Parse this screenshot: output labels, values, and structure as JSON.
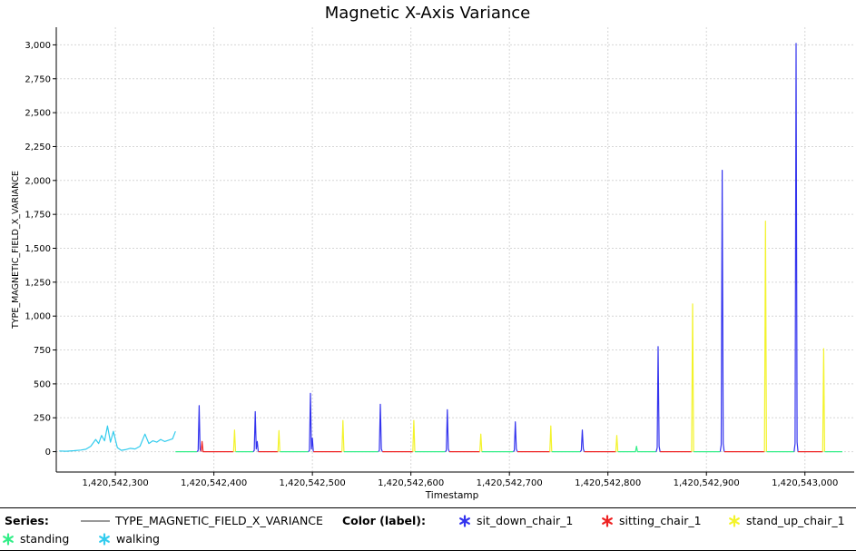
{
  "colors": {
    "sit_down_chair_1": "#3333ee",
    "sitting_chair_1": "#ee2222",
    "stand_up_chair_1": "#f3f32a",
    "standing": "#33ee88",
    "walking": "#33ccee",
    "series_line": "#9a9a9a"
  },
  "legend": {
    "series_heading": "Series:",
    "series_name": "TYPE_MAGNETIC_FIELD_X_VARIANCE",
    "color_heading": "Color (label):",
    "labels": [
      {
        "key": "sit_down_chair_1",
        "text": "sit_down_chair_1",
        "icon": "asterisk-icon"
      },
      {
        "key": "sitting_chair_1",
        "text": "sitting_chair_1",
        "icon": "asterisk-icon"
      },
      {
        "key": "stand_up_chair_1",
        "text": "stand_up_chair_1",
        "icon": "asterisk-icon"
      },
      {
        "key": "standing",
        "text": "standing",
        "icon": "asterisk-icon"
      },
      {
        "key": "walking",
        "text": "walking",
        "icon": "asterisk-icon"
      }
    ]
  },
  "chart_data": {
    "type": "line",
    "title": "Magnetic X-Axis Variance",
    "xlabel": "Timestamp",
    "ylabel": "TYPE_MAGNETIC_FIELD_X_VARIANCE",
    "xlim": [
      1420542240,
      1420543050
    ],
    "ylim": [
      -150,
      3130
    ],
    "grid": true,
    "legend_position": "bottom",
    "x_ticks": [
      {
        "value": 1420542300,
        "label": "1,420,542,300"
      },
      {
        "value": 1420542400,
        "label": "1,420,542,400"
      },
      {
        "value": 1420542500,
        "label": "1,420,542,500"
      },
      {
        "value": 1420542600,
        "label": "1,420,542,600"
      },
      {
        "value": 1420542700,
        "label": "1,420,542,700"
      },
      {
        "value": 1420542800,
        "label": "1,420,542,800"
      },
      {
        "value": 1420542900,
        "label": "1,420,542,900"
      },
      {
        "value": 1420543000,
        "label": "1,420,543,000"
      }
    ],
    "y_ticks": [
      {
        "value": 0,
        "label": "0"
      },
      {
        "value": 250,
        "label": "250"
      },
      {
        "value": 500,
        "label": "500"
      },
      {
        "value": 750,
        "label": "750"
      },
      {
        "value": 1000,
        "label": "1,000"
      },
      {
        "value": 1250,
        "label": "1,250"
      },
      {
        "value": 1500,
        "label": "1,500"
      },
      {
        "value": 1750,
        "label": "1,750"
      },
      {
        "value": 2000,
        "label": "2,000"
      },
      {
        "value": 2250,
        "label": "2,250"
      },
      {
        "value": 2500,
        "label": "2,500"
      },
      {
        "value": 2750,
        "label": "2,750"
      },
      {
        "value": 3000,
        "label": "3,000"
      }
    ],
    "series": [
      {
        "name": "TYPE_MAGNETIC_FIELD_X_VARIANCE",
        "segments": [
          {
            "label": "walking",
            "points": [
              [
                1420542243,
                5
              ],
              [
                1420542250,
                3
              ],
              [
                1420542258,
                7
              ],
              [
                1420542265,
                12
              ],
              [
                1420542270,
                18
              ],
              [
                1420542275,
                40
              ],
              [
                1420542280,
                90
              ],
              [
                1420542283,
                60
              ],
              [
                1420542286,
                120
              ],
              [
                1420542289,
                80
              ],
              [
                1420542292,
                190
              ],
              [
                1420542295,
                70
              ],
              [
                1420542298,
                150
              ],
              [
                1420542302,
                30
              ],
              [
                1420542306,
                10
              ],
              [
                1420542310,
                15
              ],
              [
                1420542315,
                25
              ],
              [
                1420542320,
                20
              ],
              [
                1420542325,
                40
              ],
              [
                1420542330,
                130
              ],
              [
                1420542334,
                60
              ],
              [
                1420542338,
                80
              ],
              [
                1420542342,
                70
              ],
              [
                1420542346,
                90
              ],
              [
                1420542350,
                75
              ],
              [
                1420542354,
                85
              ],
              [
                1420542358,
                95
              ],
              [
                1420542361,
                150
              ]
            ]
          },
          {
            "label": "standing",
            "points": [
              [
                1420542361,
                0
              ],
              [
                1420542383,
                0
              ]
            ]
          },
          {
            "label": "sit_down_chair_1",
            "points": [
              [
                1420542383,
                0
              ],
              [
                1420542384,
                10
              ],
              [
                1420542385,
                340
              ],
              [
                1420542386,
                20
              ],
              [
                1420542387,
                0
              ]
            ]
          },
          {
            "label": "sitting_chair_1",
            "points": [
              [
                1420542387,
                0
              ],
              [
                1420542388,
                75
              ],
              [
                1420542389,
                0
              ],
              [
                1420542420,
                0
              ]
            ]
          },
          {
            "label": "stand_up_chair_1",
            "points": [
              [
                1420542420,
                0
              ],
              [
                1420542421,
                160
              ],
              [
                1420542422,
                0
              ]
            ]
          },
          {
            "label": "standing",
            "points": [
              [
                1420542422,
                0
              ],
              [
                1420542440,
                0
              ]
            ]
          },
          {
            "label": "sit_down_chair_1",
            "points": [
              [
                1420542440,
                0
              ],
              [
                1420542441,
                10
              ],
              [
                1420542442,
                295
              ],
              [
                1420542443,
                20
              ],
              [
                1420542444,
                75
              ],
              [
                1420542445,
                0
              ]
            ]
          },
          {
            "label": "sitting_chair_1",
            "points": [
              [
                1420542445,
                0
              ],
              [
                1420542465,
                0
              ]
            ]
          },
          {
            "label": "stand_up_chair_1",
            "points": [
              [
                1420542465,
                0
              ],
              [
                1420542466,
                155
              ],
              [
                1420542467,
                0
              ]
            ]
          },
          {
            "label": "standing",
            "points": [
              [
                1420542467,
                0
              ],
              [
                1420542496,
                0
              ]
            ]
          },
          {
            "label": "sit_down_chair_1",
            "points": [
              [
                1420542496,
                0
              ],
              [
                1420542497,
                10
              ],
              [
                1420542498,
                430
              ],
              [
                1420542499,
                20
              ],
              [
                1420542500,
                100
              ],
              [
                1420542501,
                0
              ]
            ]
          },
          {
            "label": "sitting_chair_1",
            "points": [
              [
                1420542501,
                0
              ],
              [
                1420542530,
                0
              ]
            ]
          },
          {
            "label": "stand_up_chair_1",
            "points": [
              [
                1420542530,
                0
              ],
              [
                1420542531,
                230
              ],
              [
                1420542532,
                0
              ]
            ]
          },
          {
            "label": "standing",
            "points": [
              [
                1420542532,
                0
              ],
              [
                1420542567,
                0
              ]
            ]
          },
          {
            "label": "sit_down_chair_1",
            "points": [
              [
                1420542567,
                0
              ],
              [
                1420542568,
                10
              ],
              [
                1420542569,
                350
              ],
              [
                1420542570,
                20
              ],
              [
                1420542571,
                0
              ]
            ]
          },
          {
            "label": "sitting_chair_1",
            "points": [
              [
                1420542571,
                0
              ],
              [
                1420542602,
                0
              ]
            ]
          },
          {
            "label": "stand_up_chair_1",
            "points": [
              [
                1420542602,
                0
              ],
              [
                1420542603,
                230
              ],
              [
                1420542604,
                0
              ]
            ]
          },
          {
            "label": "standing",
            "points": [
              [
                1420542604,
                0
              ],
              [
                1420542635,
                0
              ]
            ]
          },
          {
            "label": "sit_down_chair_1",
            "points": [
              [
                1420542635,
                0
              ],
              [
                1420542636,
                10
              ],
              [
                1420542637,
                310
              ],
              [
                1420542638,
                20
              ],
              [
                1420542639,
                0
              ]
            ]
          },
          {
            "label": "sitting_chair_1",
            "points": [
              [
                1420542639,
                0
              ],
              [
                1420542670,
                0
              ]
            ]
          },
          {
            "label": "stand_up_chair_1",
            "points": [
              [
                1420542670,
                0
              ],
              [
                1420542671,
                130
              ],
              [
                1420542672,
                0
              ]
            ]
          },
          {
            "label": "standing",
            "points": [
              [
                1420542672,
                0
              ],
              [
                1420542704,
                0
              ]
            ]
          },
          {
            "label": "sit_down_chair_1",
            "points": [
              [
                1420542704,
                0
              ],
              [
                1420542705,
                10
              ],
              [
                1420542706,
                220
              ],
              [
                1420542707,
                20
              ],
              [
                1420542708,
                0
              ]
            ]
          },
          {
            "label": "sitting_chair_1",
            "points": [
              [
                1420542708,
                0
              ],
              [
                1420542741,
                0
              ]
            ]
          },
          {
            "label": "stand_up_chair_1",
            "points": [
              [
                1420542741,
                0
              ],
              [
                1420542742,
                190
              ],
              [
                1420542743,
                0
              ]
            ]
          },
          {
            "label": "standing",
            "points": [
              [
                1420542743,
                0
              ],
              [
                1420542772,
                0
              ]
            ]
          },
          {
            "label": "sit_down_chair_1",
            "points": [
              [
                1420542772,
                0
              ],
              [
                1420542773,
                10
              ],
              [
                1420542774,
                160
              ],
              [
                1420542775,
                20
              ],
              [
                1420542776,
                0
              ]
            ]
          },
          {
            "label": "sitting_chair_1",
            "points": [
              [
                1420542776,
                0
              ],
              [
                1420542808,
                0
              ]
            ]
          },
          {
            "label": "stand_up_chair_1",
            "points": [
              [
                1420542808,
                0
              ],
              [
                1420542809,
                120
              ],
              [
                1420542810,
                0
              ]
            ]
          },
          {
            "label": "standing",
            "points": [
              [
                1420542810,
                0
              ],
              [
                1420542828,
                0
              ],
              [
                1420542829,
                40
              ],
              [
                1420542830,
                0
              ],
              [
                1420542849,
                0
              ]
            ]
          },
          {
            "label": "sit_down_chair_1",
            "points": [
              [
                1420542849,
                0
              ],
              [
                1420542850,
                30
              ],
              [
                1420542851,
                775
              ],
              [
                1420542852,
                40
              ],
              [
                1420542853,
                0
              ]
            ]
          },
          {
            "label": "sitting_chair_1",
            "points": [
              [
                1420542853,
                0
              ],
              [
                1420542885,
                0
              ]
            ]
          },
          {
            "label": "stand_up_chair_1",
            "points": [
              [
                1420542885,
                0
              ],
              [
                1420542886,
                1090
              ],
              [
                1420542887,
                0
              ]
            ]
          },
          {
            "label": "standing",
            "points": [
              [
                1420542887,
                0
              ],
              [
                1420542914,
                0
              ]
            ]
          },
          {
            "label": "sit_down_chair_1",
            "points": [
              [
                1420542914,
                0
              ],
              [
                1420542915,
                50
              ],
              [
                1420542916,
                2075
              ],
              [
                1420542917,
                60
              ],
              [
                1420542918,
                0
              ]
            ]
          },
          {
            "label": "sitting_chair_1",
            "points": [
              [
                1420542918,
                0
              ],
              [
                1420542959,
                0
              ]
            ]
          },
          {
            "label": "stand_up_chair_1",
            "points": [
              [
                1420542959,
                0
              ],
              [
                1420542960,
                1700
              ],
              [
                1420542961,
                0
              ]
            ]
          },
          {
            "label": "standing",
            "points": [
              [
                1420542961,
                0
              ],
              [
                1420542989,
                0
              ]
            ]
          },
          {
            "label": "sit_down_chair_1",
            "points": [
              [
                1420542989,
                0
              ],
              [
                1420542990,
                60
              ],
              [
                1420542991,
                3010
              ],
              [
                1420542992,
                70
              ],
              [
                1420542993,
                0
              ]
            ]
          },
          {
            "label": "sitting_chair_1",
            "points": [
              [
                1420542993,
                0
              ],
              [
                1420543018,
                0
              ]
            ]
          },
          {
            "label": "stand_up_chair_1",
            "points": [
              [
                1420543018,
                0
              ],
              [
                1420543019,
                760
              ],
              [
                1420543020,
                0
              ]
            ]
          },
          {
            "label": "standing",
            "points": [
              [
                1420543020,
                0
              ],
              [
                1420543038,
                0
              ]
            ]
          }
        ]
      }
    ]
  }
}
